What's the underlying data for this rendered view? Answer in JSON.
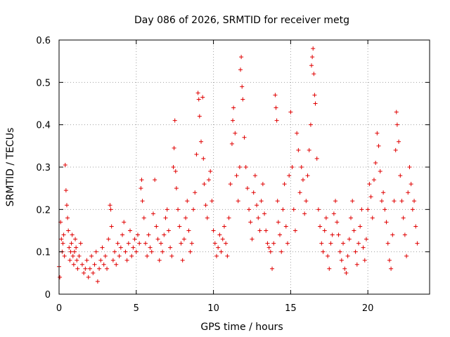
{
  "chart_data": {
    "type": "scatter",
    "title": "Day 086 of 2026, SRMTID for receiver metg",
    "xlabel": "GPS time / hours",
    "ylabel": "SRMTID / TECUs",
    "xlim": [
      0,
      24
    ],
    "ylim": [
      0,
      0.6
    ],
    "x_ticks": [
      0,
      5,
      10,
      15,
      20
    ],
    "x_tick_labels": [
      "0",
      "5",
      "10",
      "15",
      "20"
    ],
    "y_ticks": [
      0,
      0.1,
      0.2,
      0.3,
      0.4,
      0.5,
      0.6
    ],
    "y_tick_labels": [
      "0",
      "0.1",
      "0.2",
      "0.3",
      "0.4",
      "0.5",
      "0.6"
    ],
    "grid": true,
    "marker": "plus",
    "series_color": "#e00000",
    "series": [
      {
        "name": "SRMTID",
        "points": [
          [
            0.0,
            0.065
          ],
          [
            0.05,
            0.04
          ],
          [
            0.1,
            0.17
          ],
          [
            0.15,
            0.13
          ],
          [
            0.2,
            0.1
          ],
          [
            0.25,
            0.12
          ],
          [
            0.3,
            0.14
          ],
          [
            0.35,
            0.09
          ],
          [
            0.4,
            0.305
          ],
          [
            0.45,
            0.245
          ],
          [
            0.5,
            0.21
          ],
          [
            0.55,
            0.18
          ],
          [
            0.6,
            0.15
          ],
          [
            0.65,
            0.11
          ],
          [
            0.7,
            0.08
          ],
          [
            0.75,
            0.1
          ],
          [
            0.8,
            0.12
          ],
          [
            0.85,
            0.14
          ],
          [
            0.9,
            0.09
          ],
          [
            0.95,
            0.07
          ],
          [
            1.0,
            0.1
          ],
          [
            1.05,
            0.13
          ],
          [
            1.1,
            0.11
          ],
          [
            1.15,
            0.08
          ],
          [
            1.2,
            0.06
          ],
          [
            1.3,
            0.09
          ],
          [
            1.4,
            0.12
          ],
          [
            1.5,
            0.07
          ],
          [
            1.6,
            0.05
          ],
          [
            1.7,
            0.06
          ],
          [
            1.8,
            0.08
          ],
          [
            1.9,
            0.04
          ],
          [
            2.0,
            0.06
          ],
          [
            2.1,
            0.09
          ],
          [
            2.2,
            0.05
          ],
          [
            2.3,
            0.07
          ],
          [
            2.4,
            0.1
          ],
          [
            2.5,
            0.03
          ],
          [
            2.6,
            0.06
          ],
          [
            2.7,
            0.08
          ],
          [
            2.8,
            0.11
          ],
          [
            2.9,
            0.07
          ],
          [
            3.0,
            0.09
          ],
          [
            3.1,
            0.06
          ],
          [
            3.2,
            0.13
          ],
          [
            3.3,
            0.21
          ],
          [
            3.35,
            0.2
          ],
          [
            3.4,
            0.16
          ],
          [
            3.5,
            0.08
          ],
          [
            3.6,
            0.1
          ],
          [
            3.7,
            0.07
          ],
          [
            3.8,
            0.12
          ],
          [
            3.9,
            0.09
          ],
          [
            4.0,
            0.11
          ],
          [
            4.1,
            0.14
          ],
          [
            4.2,
            0.17
          ],
          [
            4.3,
            0.1
          ],
          [
            4.4,
            0.08
          ],
          [
            4.5,
            0.12
          ],
          [
            4.6,
            0.15
          ],
          [
            4.7,
            0.09
          ],
          [
            4.8,
            0.11
          ],
          [
            4.9,
            0.13
          ],
          [
            5.0,
            0.1
          ],
          [
            5.1,
            0.14
          ],
          [
            5.2,
            0.12
          ],
          [
            5.3,
            0.25
          ],
          [
            5.35,
            0.27
          ],
          [
            5.4,
            0.22
          ],
          [
            5.5,
            0.18
          ],
          [
            5.6,
            0.12
          ],
          [
            5.7,
            0.09
          ],
          [
            5.8,
            0.14
          ],
          [
            5.9,
            0.11
          ],
          [
            6.0,
            0.1
          ],
          [
            6.1,
            0.19
          ],
          [
            6.2,
            0.27
          ],
          [
            6.3,
            0.16
          ],
          [
            6.4,
            0.13
          ],
          [
            6.5,
            0.08
          ],
          [
            6.6,
            0.12
          ],
          [
            6.7,
            0.1
          ],
          [
            6.8,
            0.14
          ],
          [
            6.9,
            0.18
          ],
          [
            7.0,
            0.2
          ],
          [
            7.1,
            0.15
          ],
          [
            7.2,
            0.11
          ],
          [
            7.3,
            0.09
          ],
          [
            7.4,
            0.3
          ],
          [
            7.45,
            0.345
          ],
          [
            7.5,
            0.41
          ],
          [
            7.55,
            0.29
          ],
          [
            7.6,
            0.25
          ],
          [
            7.7,
            0.2
          ],
          [
            7.8,
            0.16
          ],
          [
            7.9,
            0.12
          ],
          [
            8.0,
            0.08
          ],
          [
            8.1,
            0.13
          ],
          [
            8.2,
            0.18
          ],
          [
            8.3,
            0.22
          ],
          [
            8.4,
            0.15
          ],
          [
            8.5,
            0.1
          ],
          [
            8.6,
            0.12
          ],
          [
            8.7,
            0.2
          ],
          [
            8.8,
            0.24
          ],
          [
            8.9,
            0.33
          ],
          [
            9.0,
            0.475
          ],
          [
            9.05,
            0.46
          ],
          [
            9.1,
            0.42
          ],
          [
            9.2,
            0.36
          ],
          [
            9.3,
            0.465
          ],
          [
            9.35,
            0.32
          ],
          [
            9.4,
            0.26
          ],
          [
            9.5,
            0.21
          ],
          [
            9.6,
            0.18
          ],
          [
            9.7,
            0.27
          ],
          [
            9.8,
            0.29
          ],
          [
            9.9,
            0.22
          ],
          [
            10.0,
            0.15
          ],
          [
            10.1,
            0.12
          ],
          [
            10.2,
            0.09
          ],
          [
            10.3,
            0.11
          ],
          [
            10.4,
            0.14
          ],
          [
            10.5,
            0.1
          ],
          [
            10.6,
            0.13
          ],
          [
            10.7,
            0.16
          ],
          [
            10.8,
            0.12
          ],
          [
            10.9,
            0.09
          ],
          [
            11.0,
            0.18
          ],
          [
            11.1,
            0.26
          ],
          [
            11.2,
            0.355
          ],
          [
            11.25,
            0.41
          ],
          [
            11.3,
            0.44
          ],
          [
            11.4,
            0.38
          ],
          [
            11.5,
            0.28
          ],
          [
            11.6,
            0.22
          ],
          [
            11.7,
            0.3
          ],
          [
            11.75,
            0.53
          ],
          [
            11.8,
            0.56
          ],
          [
            11.85,
            0.49
          ],
          [
            11.9,
            0.46
          ],
          [
            12.0,
            0.37
          ],
          [
            12.1,
            0.3
          ],
          [
            12.2,
            0.25
          ],
          [
            12.3,
            0.2
          ],
          [
            12.4,
            0.17
          ],
          [
            12.5,
            0.13
          ],
          [
            12.6,
            0.24
          ],
          [
            12.7,
            0.28
          ],
          [
            12.8,
            0.21
          ],
          [
            12.9,
            0.18
          ],
          [
            13.0,
            0.15
          ],
          [
            13.1,
            0.22
          ],
          [
            13.2,
            0.26
          ],
          [
            13.3,
            0.19
          ],
          [
            13.4,
            0.15
          ],
          [
            13.5,
            0.12
          ],
          [
            13.6,
            0.11
          ],
          [
            13.7,
            0.1
          ],
          [
            13.8,
            0.06
          ],
          [
            13.9,
            0.12
          ],
          [
            14.0,
            0.47
          ],
          [
            14.05,
            0.44
          ],
          [
            14.1,
            0.41
          ],
          [
            14.15,
            0.22
          ],
          [
            14.2,
            0.17
          ],
          [
            14.3,
            0.14
          ],
          [
            14.4,
            0.1
          ],
          [
            14.5,
            0.2
          ],
          [
            14.6,
            0.26
          ],
          [
            14.7,
            0.16
          ],
          [
            14.8,
            0.12
          ],
          [
            14.9,
            0.28
          ],
          [
            15.0,
            0.43
          ],
          [
            15.1,
            0.3
          ],
          [
            15.2,
            0.2
          ],
          [
            15.3,
            0.15
          ],
          [
            15.4,
            0.38
          ],
          [
            15.5,
            0.34
          ],
          [
            15.6,
            0.24
          ],
          [
            15.7,
            0.3
          ],
          [
            15.8,
            0.27
          ],
          [
            15.9,
            0.19
          ],
          [
            16.0,
            0.22
          ],
          [
            16.1,
            0.28
          ],
          [
            16.2,
            0.34
          ],
          [
            16.3,
            0.4
          ],
          [
            16.35,
            0.54
          ],
          [
            16.4,
            0.56
          ],
          [
            16.45,
            0.58
          ],
          [
            16.5,
            0.52
          ],
          [
            16.55,
            0.47
          ],
          [
            16.6,
            0.45
          ],
          [
            16.7,
            0.32
          ],
          [
            16.8,
            0.2
          ],
          [
            16.9,
            0.16
          ],
          [
            17.0,
            0.12
          ],
          [
            17.1,
            0.1
          ],
          [
            17.2,
            0.15
          ],
          [
            17.3,
            0.18
          ],
          [
            17.4,
            0.09
          ],
          [
            17.5,
            0.06
          ],
          [
            17.6,
            0.12
          ],
          [
            17.7,
            0.14
          ],
          [
            17.8,
            0.19
          ],
          [
            17.9,
            0.22
          ],
          [
            18.0,
            0.17
          ],
          [
            18.1,
            0.14
          ],
          [
            18.2,
            0.1
          ],
          [
            18.3,
            0.08
          ],
          [
            18.4,
            0.12
          ],
          [
            18.5,
            0.06
          ],
          [
            18.6,
            0.05
          ],
          [
            18.7,
            0.09
          ],
          [
            18.8,
            0.13
          ],
          [
            18.9,
            0.18
          ],
          [
            19.0,
            0.22
          ],
          [
            19.1,
            0.15
          ],
          [
            19.2,
            0.1
          ],
          [
            19.3,
            0.07
          ],
          [
            19.4,
            0.12
          ],
          [
            19.5,
            0.16
          ],
          [
            19.6,
            0.2
          ],
          [
            19.7,
            0.11
          ],
          [
            19.8,
            0.08
          ],
          [
            19.9,
            0.13
          ],
          [
            20.0,
            0.2
          ],
          [
            20.1,
            0.26
          ],
          [
            20.2,
            0.23
          ],
          [
            20.3,
            0.18
          ],
          [
            20.4,
            0.27
          ],
          [
            20.5,
            0.31
          ],
          [
            20.6,
            0.38
          ],
          [
            20.7,
            0.35
          ],
          [
            20.8,
            0.29
          ],
          [
            20.9,
            0.22
          ],
          [
            21.0,
            0.24
          ],
          [
            21.1,
            0.2
          ],
          [
            21.2,
            0.17
          ],
          [
            21.3,
            0.12
          ],
          [
            21.4,
            0.08
          ],
          [
            21.5,
            0.06
          ],
          [
            21.6,
            0.14
          ],
          [
            21.7,
            0.22
          ],
          [
            21.8,
            0.34
          ],
          [
            21.85,
            0.43
          ],
          [
            21.9,
            0.4
          ],
          [
            22.0,
            0.36
          ],
          [
            22.1,
            0.28
          ],
          [
            22.2,
            0.22
          ],
          [
            22.3,
            0.18
          ],
          [
            22.4,
            0.14
          ],
          [
            22.5,
            0.09
          ],
          [
            22.6,
            0.24
          ],
          [
            22.7,
            0.3
          ],
          [
            22.8,
            0.26
          ],
          [
            22.9,
            0.2
          ],
          [
            23.0,
            0.22
          ],
          [
            23.1,
            0.16
          ],
          [
            23.2,
            0.12
          ]
        ]
      }
    ]
  }
}
